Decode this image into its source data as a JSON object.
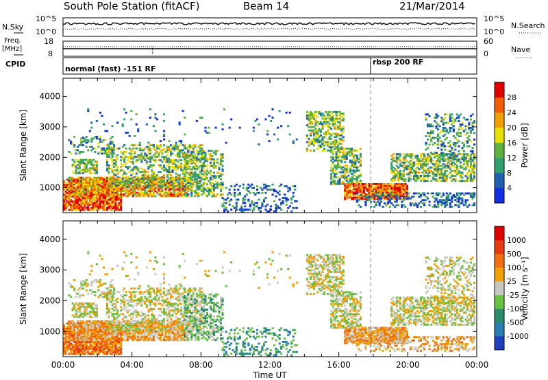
{
  "header": {
    "station": "South Pole Station (fitACF)",
    "beam": "Beam 14",
    "date": "21/Mar/2014"
  },
  "top_panels": {
    "nsky_label": "N.Sky",
    "nsky_top": "10^5",
    "nsky_bottom": "10^0",
    "nsearch_label": "N.Search",
    "freq_label": "Freq.",
    "freq_unit": "[MHz]",
    "freq_top": "18",
    "freq_bottom": "8",
    "nave_top": "60",
    "nave_bottom": "0",
    "nave_label": "Nave",
    "cpid_label": "CPID",
    "cpid_mode1": "normal (fast) -151 RF",
    "cpid_mode2": "rbsp 200 RF"
  },
  "colors": {
    "power": [
      "#1030e0",
      "#2060b0",
      "#30a070",
      "#60b040",
      "#e8e000",
      "#f0a000",
      "#f06000",
      "#e00000"
    ],
    "velocity": [
      "#2040c0",
      "#2a7fb0",
      "#2a8a6a",
      "#6ac040",
      "#c8c8c0",
      "#f0a000",
      "#f07010",
      "#e83a10",
      "#e00000"
    ],
    "ground": "#c8c8c0"
  },
  "chart_data": [
    {
      "type": "heatmap",
      "name": "power",
      "xlabel": "",
      "ylabel": "Slant Range [km]",
      "x_ticks": [
        "00:00",
        "04:00",
        "08:00",
        "12:00",
        "16:00",
        "20:00",
        "00:00"
      ],
      "x_range_hours": [
        0,
        24
      ],
      "y_ticks": [
        1000,
        2000,
        3000,
        4000
      ],
      "y_range": [
        180,
        4600
      ],
      "colorbar_label": "Power [dB]",
      "colorbar_ticks": [
        "28",
        "24",
        "20",
        "16",
        "12",
        "8",
        "4"
      ],
      "colorbar_levels": [
        0,
        4,
        8,
        12,
        16,
        20,
        24,
        28,
        32
      ]
    },
    {
      "type": "heatmap",
      "name": "velocity",
      "xlabel": "Time UT",
      "ylabel": "Slant Range [km]",
      "x_ticks": [
        "00:00",
        "04:00",
        "08:00",
        "12:00",
        "16:00",
        "20:00",
        "00:00"
      ],
      "x_range_hours": [
        0,
        24
      ],
      "y_ticks": [
        1000,
        2000,
        3000,
        4000
      ],
      "y_range": [
        180,
        4600
      ],
      "colorbar_label": "Velocity [m s⁻¹]",
      "colorbar_ticks": [
        "1000",
        "500",
        "100",
        "25",
        "-25",
        "-100",
        "-500",
        "-1000"
      ]
    }
  ]
}
